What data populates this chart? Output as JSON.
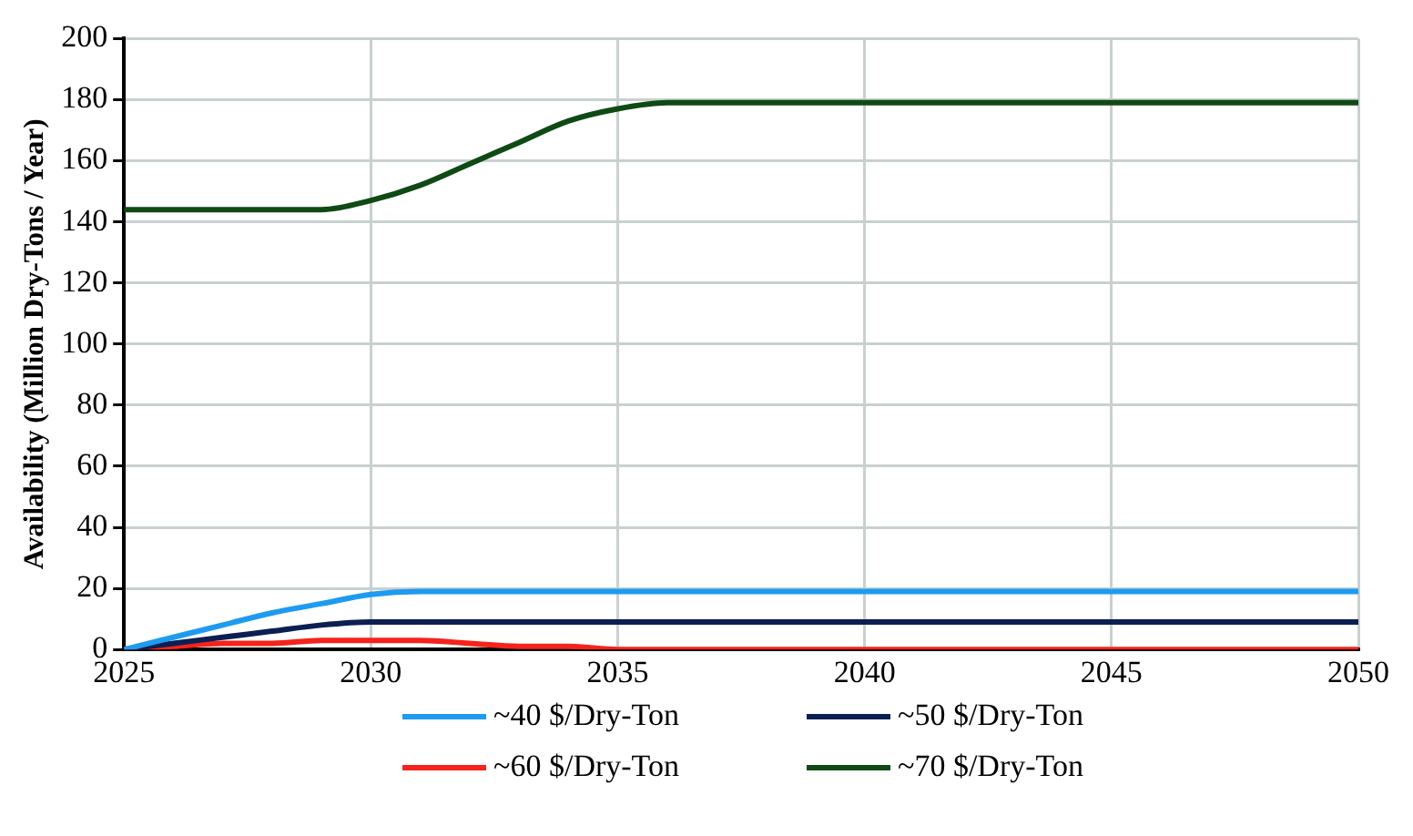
{
  "chart_data": {
    "type": "line",
    "ylabel": "Availability (Million Dry-Tons / Year)",
    "x": [
      2025,
      2026,
      2027,
      2028,
      2029,
      2030,
      2031,
      2032,
      2033,
      2034,
      2035,
      2036,
      2037,
      2038,
      2039,
      2040,
      2041,
      2042,
      2043,
      2044,
      2045,
      2046,
      2047,
      2048,
      2049,
      2050
    ],
    "series": [
      {
        "name": "~40 $/Dry-Ton",
        "color": "#1e9bf0",
        "values": [
          0,
          4,
          8,
          12,
          15,
          18,
          19,
          19,
          19,
          19,
          19,
          19,
          19,
          19,
          19,
          19,
          19,
          19,
          19,
          19,
          19,
          19,
          19,
          19,
          19,
          19
        ]
      },
      {
        "name": "~50 $/Dry-Ton",
        "color": "#0c1f52",
        "values": [
          0,
          2,
          4,
          6,
          8,
          9,
          9,
          9,
          9,
          9,
          9,
          9,
          9,
          9,
          9,
          9,
          9,
          9,
          9,
          9,
          9,
          9,
          9,
          9,
          9,
          9
        ]
      },
      {
        "name": "~60 $/Dry-Ton",
        "color": "#f5231b",
        "values": [
          0,
          1,
          2,
          2,
          3,
          3,
          3,
          2,
          1,
          1,
          0,
          0,
          0,
          0,
          0,
          0,
          0,
          0,
          0,
          0,
          0,
          0,
          0,
          0,
          0,
          0
        ]
      },
      {
        "name": "~70 $/Dry-Ton",
        "color": "#0f4a14",
        "values": [
          144,
          144,
          144,
          144,
          144,
          147,
          152,
          159,
          166,
          173,
          177,
          179,
          179,
          179,
          179,
          179,
          179,
          179,
          179,
          179,
          179,
          179,
          179,
          179,
          179,
          179
        ]
      }
    ],
    "xlim": [
      2025,
      2050
    ],
    "xticks": [
      2025,
      2030,
      2035,
      2040,
      2045,
      2050
    ],
    "ylim": [
      0,
      200
    ],
    "yticks": [
      0,
      20,
      40,
      60,
      80,
      100,
      120,
      140,
      160,
      180,
      200
    ],
    "grid": true,
    "legend": "bottom",
    "marker": "none",
    "line_style": "solid"
  }
}
